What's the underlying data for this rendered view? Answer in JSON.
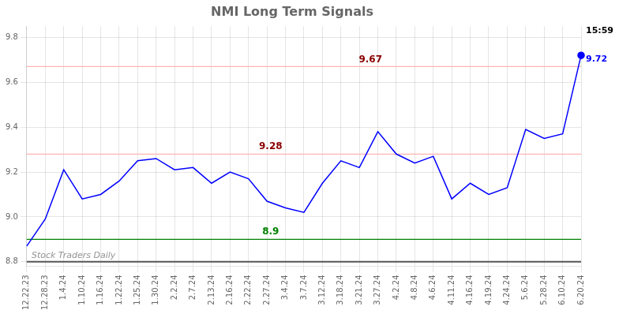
{
  "chart_data": {
    "type": "line",
    "title": "NMI Long Term Signals",
    "categories": [
      "12.22.23",
      "12.28.23",
      "1.4.24",
      "1.10.24",
      "1.16.24",
      "1.22.24",
      "1.25.24",
      "1.30.24",
      "2.2.24",
      "2.7.24",
      "2.13.24",
      "2.16.24",
      "2.22.24",
      "2.27.24",
      "3.4.24",
      "3.7.24",
      "3.12.24",
      "3.18.24",
      "3.21.24",
      "3.27.24",
      "4.2.24",
      "4.8.24",
      "4.6.24",
      "4.11.24",
      "4.16.24",
      "4.19.24",
      "4.24.24",
      "5.6.24",
      "5.28.24",
      "6.10.24",
      "6.20.24"
    ],
    "series": [
      {
        "color": "blue",
        "marker": "last",
        "values": [
          8.87,
          8.99,
          9.21,
          9.08,
          9.1,
          9.16,
          9.25,
          9.26,
          9.21,
          9.22,
          9.15,
          9.2,
          9.17,
          9.07,
          9.04,
          9.02,
          9.15,
          9.25,
          9.22,
          9.38,
          9.28,
          9.24,
          9.27,
          9.08,
          9.15,
          9.1,
          9.13,
          9.39,
          9.35,
          9.37,
          9.72
        ]
      }
    ],
    "hlines": [
      {
        "value": 9.67,
        "color": "#FFB3B3",
        "label": "9.67",
        "label_color": "darkred"
      },
      {
        "value": 9.28,
        "color": "#FFB3B3",
        "label": "9.28",
        "label_color": "darkred"
      },
      {
        "value": 8.9,
        "color": "green",
        "label": "8.9",
        "label_color": "green"
      },
      {
        "value": 8.8,
        "color": "#555555"
      }
    ],
    "annotations": [
      {
        "text": "15:59",
        "color": "black"
      },
      {
        "text": "9.72",
        "color": "blue"
      }
    ],
    "watermark": "Stock Traders Daily",
    "ylim": [
      8.78,
      9.85
    ],
    "yticks": [
      8.8,
      {
        "value": 9.0,
        "label": "9.0"
      },
      9.2,
      9.4,
      9.6,
      9.8
    ],
    "grid": true
  }
}
